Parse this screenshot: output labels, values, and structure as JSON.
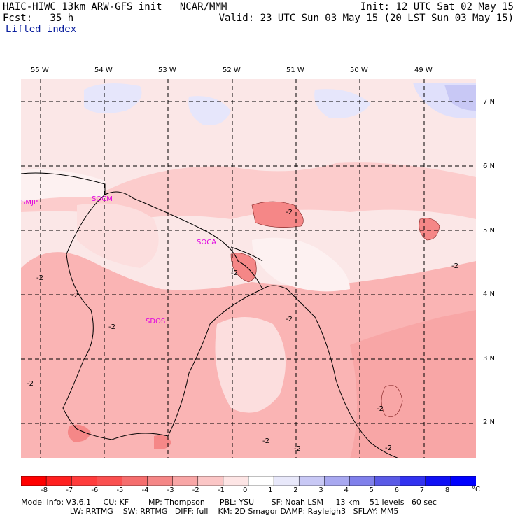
{
  "header": {
    "model": "HAIC-HIWC 13km ARW-GFS init",
    "org": "NCAR/MMM",
    "init": "Init: 12 UTC Sat 02 May 15",
    "fcst": "Fcst:   35 h",
    "valid": "Valid: 23 UTC Sun 03 May 15 (20 LST Sun 03 May 15)",
    "field": "Lifted index"
  },
  "map": {
    "lon_labels": [
      "55 W",
      "54 W",
      "53 W",
      "52 W",
      "51 W",
      "50 W",
      "49 W"
    ],
    "lat_labels": [
      "7 N",
      "6 N",
      "5 N",
      "4 N",
      "3 N",
      "2 N"
    ],
    "stations": [
      "SMJP",
      "SOCM",
      "SOCA",
      "SDOS"
    ],
    "contour_label": "-2",
    "fill_colors": {
      "ocean": "#fbe7e7",
      "light_pink": "#fccccc",
      "pink": "#fab4b4",
      "blue_light": "#e0e0fb",
      "blue_mid": "#c8c8f5",
      "near_zero": "#fdf1f1"
    }
  },
  "colorbar": {
    "labels": [
      "-8",
      "-7",
      "-6",
      "-5",
      "-4",
      "-3",
      "-2",
      "-1",
      "0",
      "1",
      "2",
      "3",
      "4",
      "5",
      "6",
      "7",
      "8"
    ],
    "unit": "°C",
    "colors": [
      "#ff0000",
      "#ff2020",
      "#ff3c3c",
      "#fa5050",
      "#f56e6e",
      "#f58787",
      "#f8a6a6",
      "#fbc6c6",
      "#fde5e5",
      "#ffffff",
      "#e8e8fa",
      "#c8c8f5",
      "#a8a8f0",
      "#8080eb",
      "#5a5ae6",
      "#3232f0",
      "#1010f5",
      "#0000ff"
    ]
  },
  "footer": {
    "line1": "Model Info: V3.6.1     CU: KF        MP: Thompson      PBL: YSU       SF: Noah LSM     13 km    51 levels   60 sec",
    "line2": "                    LW: RRTMG    SW: RRTMG   DIFF: full    KM: 2D Smagor DAMP: Rayleigh3   SFLAY: MM5"
  }
}
